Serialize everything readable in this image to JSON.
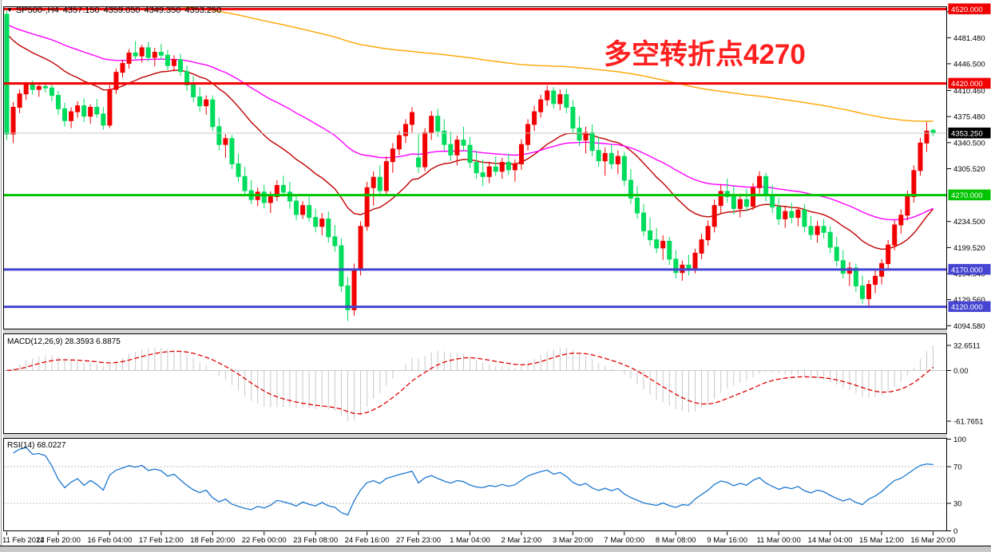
{
  "window": {
    "symbol_period": "SP500-,H4",
    "ohlc": {
      "open": "4357.150",
      "high": "4359.050",
      "low": "4349.350",
      "close": "4353.250"
    }
  },
  "icons": {
    "symbol_marker": "▼"
  },
  "annotation": {
    "text": "多空转折点4270",
    "color": "#ff1f1f"
  },
  "macd_panel": {
    "title": "MACD(12,26,9) 28.3593 6.8875",
    "axis_labels": [
      "32.6511",
      "0.00",
      "-61.7651"
    ]
  },
  "rsi_panel": {
    "title": "RSI(14) 68.0227",
    "axis_labels": [
      "100",
      "70",
      "30",
      "0"
    ],
    "levels": [
      70,
      30
    ]
  },
  "colors": {
    "bull_candle": "#f20000",
    "bear_candle": "#00dc5c",
    "ma_fast": "#c00000",
    "ma_mid": "#ff00ff",
    "ma_slow": "#ffa500",
    "level_red": "#f00000",
    "level_green": "#00c400",
    "level_blue": "#4545d2",
    "current_price_line": "#c8c8c8",
    "current_price_badge": "#000000",
    "macd_histogram": "#c8c8c8",
    "macd_signal": "#e00000",
    "rsi_line": "#1c78d0",
    "rsi_dotted": "#bbbbbb",
    "pane_border": "#000000",
    "splitter": "#d6d6d6"
  },
  "chart_data": {
    "type": "candlestick+indicators",
    "symbol": "SP500-",
    "timeframe": "H4",
    "bars_per_x_label": 8,
    "x_labels": [
      "11 Feb 2022",
      "14 Feb 20:00",
      "16 Feb 04:00",
      "17 Feb 12:00",
      "18 Feb 20:00",
      "22 Feb 00:00",
      "23 Feb 08:00",
      "24 Feb 16:00",
      "27 Feb 23:00",
      "1 Mar 04:00",
      "2 Mar 12:00",
      "3 Mar 20:00",
      "7 Mar 00:00",
      "8 Mar 08:00",
      "9 Mar 16:00",
      "11 Mar 00:00",
      "14 Mar 04:00",
      "15 Mar 12:00",
      "16 Mar 20:00"
    ],
    "y_axis_labels": [
      {
        "value": 4516.46,
        "text": "4516.460"
      },
      {
        "value": 4481.48,
        "text": "4481.480"
      },
      {
        "value": 4446.5,
        "text": "4446.500"
      },
      {
        "value": 4410.46,
        "text": "4410.460"
      },
      {
        "value": 4375.48,
        "text": "4375.480"
      },
      {
        "value": 4340.5,
        "text": "4340.500"
      },
      {
        "value": 4305.52,
        "text": "4305.520"
      },
      {
        "value": 4234.5,
        "text": "4234.500"
      },
      {
        "value": 4199.52,
        "text": "4199.520"
      },
      {
        "value": 4164.54,
        "text": "4164.540"
      },
      {
        "value": 4129.56,
        "text": "4129.560"
      },
      {
        "value": 4094.58,
        "text": "4094.580"
      }
    ],
    "levels": [
      {
        "price": 4520,
        "text": "4520.000",
        "color": "#f00000",
        "width": 3
      },
      {
        "price": 4420,
        "text": "4420.000",
        "color": "#f00000",
        "width": 3
      },
      {
        "price": 4270,
        "text": "4270.000",
        "color": "#00c400",
        "width": 3
      },
      {
        "price": 4170,
        "text": "4170.000",
        "color": "#4545d2",
        "width": 3
      },
      {
        "price": 4120,
        "text": "4120.000",
        "color": "#4545d2",
        "width": 3
      }
    ],
    "current_price": {
      "value": 4353.25,
      "text": "4353.250"
    },
    "moving_averages": [
      {
        "name": "fast",
        "type": "ema",
        "k": 0.0909,
        "seed": 4500,
        "color": "#c00000"
      },
      {
        "name": "mid",
        "type": "ema",
        "k": 0.0364,
        "seed": 4505,
        "color": "#ff00ff"
      },
      {
        "name": "slow",
        "type": "ema",
        "k": 0.008,
        "seed": 4550,
        "color": "#ffa500"
      }
    ],
    "macd": {
      "fast": 12,
      "slow": 26,
      "signal": 9,
      "current_macd": 28.3593,
      "current_signal": 6.8875,
      "axis_max": 32.6511,
      "axis_min": -61.7651
    },
    "rsi": {
      "period": 14,
      "current": 68.0227,
      "range": [
        0,
        100
      ],
      "guides": [
        70,
        30
      ]
    },
    "ohlc": [
      [
        4513,
        4518,
        4344,
        4352
      ],
      [
        4352,
        4395,
        4340,
        4388
      ],
      [
        4388,
        4412,
        4380,
        4406
      ],
      [
        4406,
        4422,
        4398,
        4418
      ],
      [
        4418,
        4424,
        4405,
        4412
      ],
      [
        4412,
        4420,
        4402,
        4416
      ],
      [
        4416,
        4422,
        4408,
        4414
      ],
      [
        4414,
        4421,
        4396,
        4404
      ],
      [
        4404,
        4410,
        4378,
        4386
      ],
      [
        4386,
        4394,
        4362,
        4370
      ],
      [
        4370,
        4388,
        4360,
        4382
      ],
      [
        4382,
        4396,
        4374,
        4390
      ],
      [
        4390,
        4400,
        4368,
        4376
      ],
      [
        4376,
        4392,
        4366,
        4388
      ],
      [
        4388,
        4399,
        4374,
        4379
      ],
      [
        4379,
        4388,
        4358,
        4364
      ],
      [
        4364,
        4418,
        4360,
        4412
      ],
      [
        4412,
        4440,
        4406,
        4435
      ],
      [
        4435,
        4452,
        4428,
        4447
      ],
      [
        4447,
        4466,
        4440,
        4461
      ],
      [
        4461,
        4477,
        4452,
        4457
      ],
      [
        4457,
        4472,
        4448,
        4468
      ],
      [
        4468,
        4476,
        4450,
        4455
      ],
      [
        4455,
        4468,
        4443,
        4462
      ],
      [
        4462,
        4473,
        4452,
        4458
      ],
      [
        4458,
        4465,
        4438,
        4444
      ],
      [
        4444,
        4458,
        4436,
        4452
      ],
      [
        4452,
        4460,
        4430,
        4436
      ],
      [
        4436,
        4444,
        4410,
        4418
      ],
      [
        4418,
        4430,
        4395,
        4402
      ],
      [
        4402,
        4415,
        4382,
        4390
      ],
      [
        4390,
        4404,
        4378,
        4398
      ],
      [
        4398,
        4404,
        4356,
        4362
      ],
      [
        4362,
        4374,
        4330,
        4338
      ],
      [
        4338,
        4352,
        4320,
        4346
      ],
      [
        4346,
        4351,
        4305,
        4312
      ],
      [
        4312,
        4326,
        4288,
        4295
      ],
      [
        4295,
        4308,
        4268,
        4276
      ],
      [
        4276,
        4290,
        4258,
        4264
      ],
      [
        4264,
        4280,
        4255,
        4274
      ],
      [
        4274,
        4284,
        4252,
        4260
      ],
      [
        4260,
        4275,
        4246,
        4268
      ],
      [
        4268,
        4290,
        4262,
        4283
      ],
      [
        4283,
        4296,
        4268,
        4274
      ],
      [
        4274,
        4288,
        4252,
        4262
      ],
      [
        4262,
        4270,
        4236,
        4244
      ],
      [
        4244,
        4262,
        4238,
        4256
      ],
      [
        4256,
        4268,
        4234,
        4240
      ],
      [
        4240,
        4252,
        4220,
        4228
      ],
      [
        4228,
        4246,
        4216,
        4238
      ],
      [
        4238,
        4248,
        4206,
        4214
      ],
      [
        4214,
        4230,
        4194,
        4202
      ],
      [
        4202,
        4212,
        4140,
        4148
      ],
      [
        4148,
        4160,
        4101,
        4116
      ],
      [
        4116,
        4178,
        4108,
        4170
      ],
      [
        4170,
        4235,
        4162,
        4228
      ],
      [
        4228,
        4288,
        4222,
        4280
      ],
      [
        4280,
        4302,
        4256,
        4294
      ],
      [
        4294,
        4310,
        4268,
        4276
      ],
      [
        4276,
        4322,
        4270,
        4315
      ],
      [
        4315,
        4340,
        4300,
        4332
      ],
      [
        4332,
        4356,
        4324,
        4350
      ],
      [
        4350,
        4372,
        4340,
        4365
      ],
      [
        4365,
        4388,
        4354,
        4381
      ],
      [
        4320,
        4352,
        4300,
        4308
      ],
      [
        4308,
        4360,
        4302,
        4354
      ],
      [
        4354,
        4383,
        4344,
        4376
      ],
      [
        4376,
        4386,
        4348,
        4356
      ],
      [
        4356,
        4372,
        4330,
        4338
      ],
      [
        4338,
        4356,
        4316,
        4324
      ],
      [
        4324,
        4350,
        4310,
        4344
      ],
      [
        4344,
        4362,
        4330,
        4337
      ],
      [
        4337,
        4348,
        4306,
        4314
      ],
      [
        4314,
        4330,
        4292,
        4300
      ],
      [
        4300,
        4318,
        4282,
        4295
      ],
      [
        4295,
        4315,
        4286,
        4308
      ],
      [
        4308,
        4322,
        4296,
        4302
      ],
      [
        4302,
        4320,
        4292,
        4314
      ],
      [
        4314,
        4326,
        4297,
        4304
      ],
      [
        4304,
        4318,
        4288,
        4312
      ],
      [
        4312,
        4345,
        4304,
        4338
      ],
      [
        4338,
        4372,
        4330,
        4365
      ],
      [
        4365,
        4390,
        4356,
        4382
      ],
      [
        4382,
        4405,
        4374,
        4398
      ],
      [
        4398,
        4417,
        4390,
        4410
      ],
      [
        4410,
        4415,
        4386,
        4393
      ],
      [
        4393,
        4412,
        4384,
        4405
      ],
      [
        4405,
        4413,
        4380,
        4388
      ],
      [
        4388,
        4398,
        4352,
        4360
      ],
      [
        4360,
        4376,
        4336,
        4344
      ],
      [
        4344,
        4362,
        4326,
        4354
      ],
      [
        4354,
        4365,
        4322,
        4330
      ],
      [
        4330,
        4348,
        4308,
        4316
      ],
      [
        4316,
        4334,
        4296,
        4326
      ],
      [
        4326,
        4338,
        4305,
        4312
      ],
      [
        4312,
        4330,
        4298,
        4322
      ],
      [
        4322,
        4328,
        4282,
        4290
      ],
      [
        4290,
        4305,
        4258,
        4266
      ],
      [
        4266,
        4282,
        4238,
        4246
      ],
      [
        4246,
        4258,
        4215,
        4222
      ],
      [
        4222,
        4240,
        4202,
        4210
      ],
      [
        4210,
        4226,
        4192,
        4199
      ],
      [
        4199,
        4216,
        4183,
        4208
      ],
      [
        4208,
        4214,
        4176,
        4184
      ],
      [
        4184,
        4196,
        4158,
        4166
      ],
      [
        4166,
        4182,
        4155,
        4176
      ],
      [
        4176,
        4190,
        4162,
        4170
      ],
      [
        4170,
        4198,
        4165,
        4192
      ],
      [
        4192,
        4218,
        4184,
        4210
      ],
      [
        4210,
        4236,
        4202,
        4228
      ],
      [
        4228,
        4264,
        4220,
        4256
      ],
      [
        4256,
        4284,
        4246,
        4275
      ],
      [
        4275,
        4292,
        4260,
        4268
      ],
      [
        4268,
        4282,
        4244,
        4252
      ],
      [
        4252,
        4272,
        4240,
        4264
      ],
      [
        4264,
        4278,
        4248,
        4255
      ],
      [
        4255,
        4286,
        4250,
        4280
      ],
      [
        4280,
        4302,
        4272,
        4295
      ],
      [
        4295,
        4300,
        4262,
        4270
      ],
      [
        4270,
        4284,
        4246,
        4254
      ],
      [
        4254,
        4266,
        4230,
        4238
      ],
      [
        4238,
        4256,
        4226,
        4248
      ],
      [
        4248,
        4260,
        4232,
        4240
      ],
      [
        4240,
        4254,
        4228,
        4250
      ],
      [
        4250,
        4258,
        4220,
        4228
      ],
      [
        4228,
        4242,
        4210,
        4217
      ],
      [
        4217,
        4235,
        4206,
        4228
      ],
      [
        4228,
        4238,
        4212,
        4220
      ],
      [
        4220,
        4228,
        4192,
        4200
      ],
      [
        4200,
        4214,
        4174,
        4182
      ],
      [
        4182,
        4196,
        4158,
        4165
      ],
      [
        4165,
        4180,
        4148,
        4172
      ],
      [
        4172,
        4178,
        4140,
        4148
      ],
      [
        4148,
        4162,
        4124,
        4131
      ],
      [
        4131,
        4156,
        4118,
        4150
      ],
      [
        4150,
        4170,
        4138,
        4161
      ],
      [
        4161,
        4184,
        4150,
        4178
      ],
      [
        4178,
        4210,
        4170,
        4203
      ],
      [
        4203,
        4236,
        4196,
        4230
      ],
      [
        4230,
        4251,
        4218,
        4243
      ],
      [
        4243,
        4276,
        4236,
        4268
      ],
      [
        4268,
        4310,
        4260,
        4303
      ],
      [
        4303,
        4347,
        4296,
        4340
      ],
      [
        4340,
        4368,
        4328,
        4356
      ],
      [
        4357.15,
        4359.05,
        4349.35,
        4353.25
      ]
    ]
  }
}
